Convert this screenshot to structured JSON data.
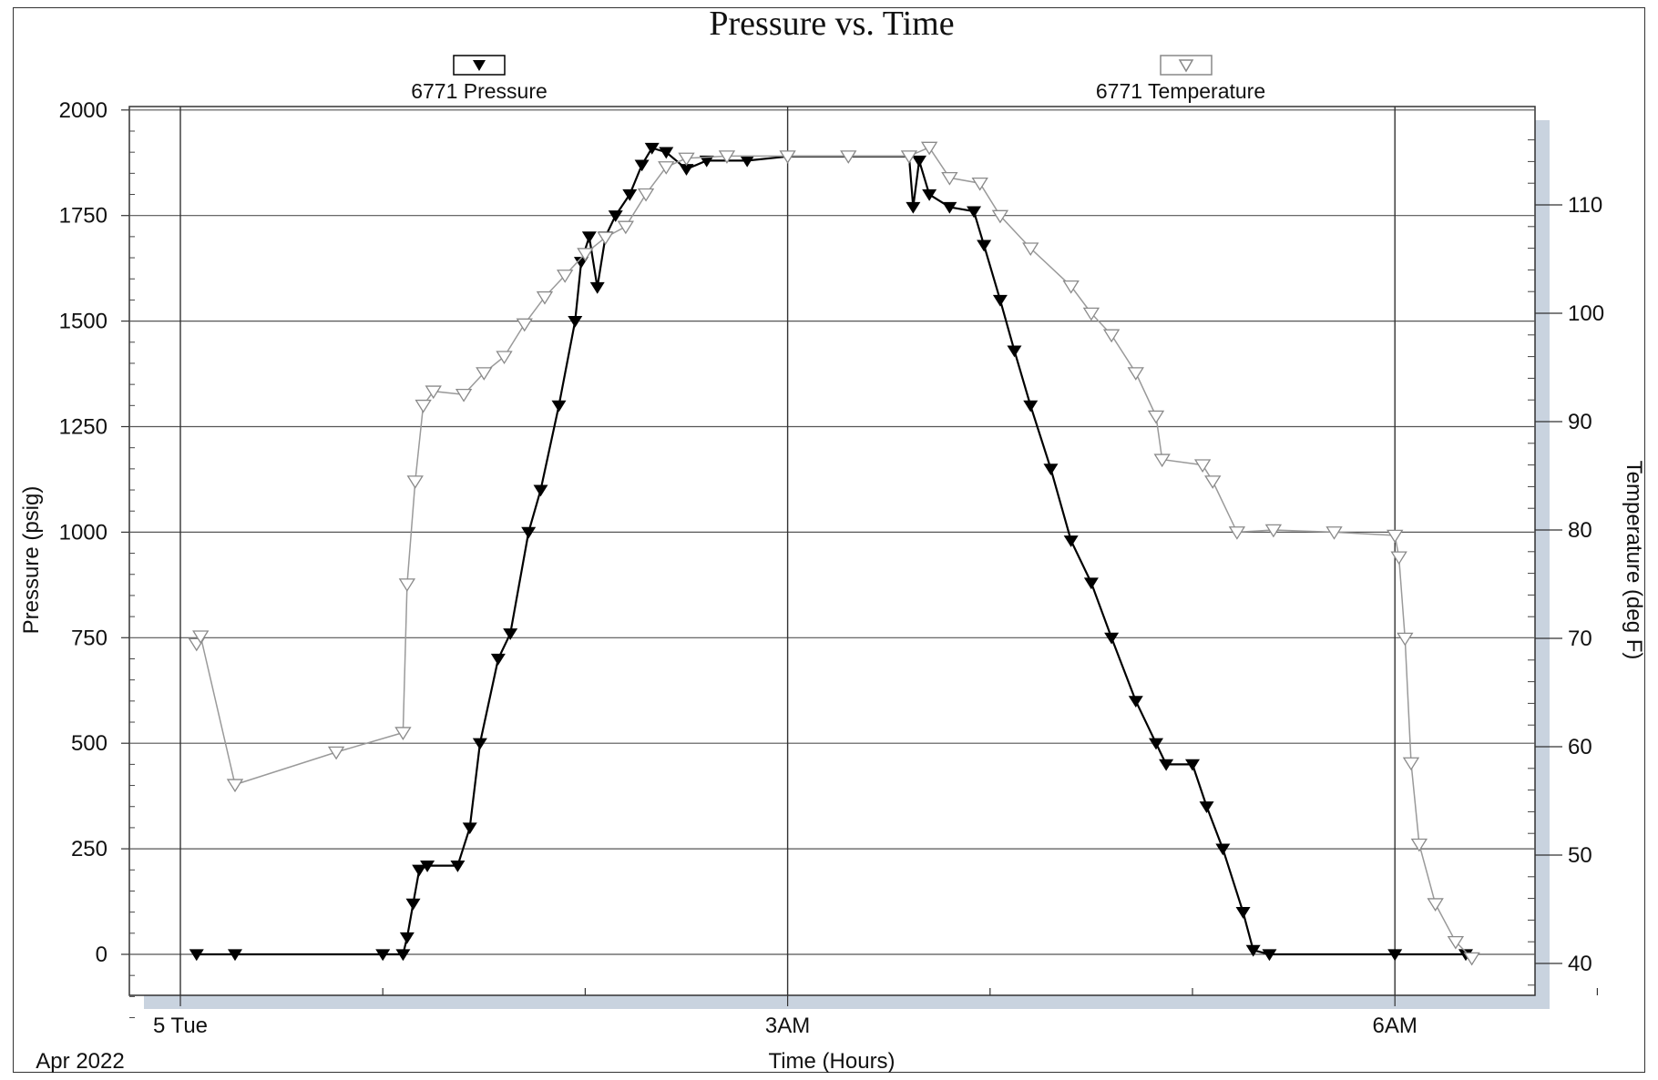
{
  "chart_data": {
    "type": "line",
    "title": "Pressure vs. Time",
    "xlabel": "Time (Hours)",
    "ylabel_left": "Pressure (psig)",
    "ylabel_right": "Temperature (deg F)",
    "x_unit": "hours since Apr 5 2022 00:00",
    "x_range": [
      -0.1,
      7.2
    ],
    "x_ticks": [
      {
        "x": 0,
        "label": "5 Tue"
      },
      {
        "x": 3,
        "label": "3AM"
      },
      {
        "x": 6,
        "label": "6AM"
      }
    ],
    "x_sub_label": "Apr 2022",
    "y_left_range": [
      -200,
      2000
    ],
    "y_left_ticks": [
      0,
      250,
      500,
      750,
      1000,
      1250,
      1500,
      1750,
      2000
    ],
    "y_right_range": [
      37,
      117
    ],
    "y_right_ticks": [
      40,
      50,
      60,
      70,
      80,
      90,
      100,
      110
    ],
    "grid": true,
    "legend_position": "top",
    "series": [
      {
        "name": "6771 Pressure",
        "axis": "left",
        "marker": "filled-down-triangle",
        "color": "#000000",
        "points": [
          [
            0.08,
            0
          ],
          [
            0.27,
            0
          ],
          [
            1.0,
            0
          ],
          [
            1.1,
            0
          ],
          [
            1.12,
            40
          ],
          [
            1.15,
            120
          ],
          [
            1.18,
            200
          ],
          [
            1.22,
            210
          ],
          [
            1.37,
            210
          ],
          [
            1.43,
            300
          ],
          [
            1.48,
            500
          ],
          [
            1.57,
            700
          ],
          [
            1.63,
            760
          ],
          [
            1.72,
            1000
          ],
          [
            1.78,
            1100
          ],
          [
            1.87,
            1300
          ],
          [
            1.95,
            1500
          ],
          [
            1.98,
            1640
          ],
          [
            2.02,
            1700
          ],
          [
            2.06,
            1580
          ],
          [
            2.1,
            1700
          ],
          [
            2.15,
            1750
          ],
          [
            2.22,
            1800
          ],
          [
            2.28,
            1870
          ],
          [
            2.33,
            1910
          ],
          [
            2.4,
            1900
          ],
          [
            2.5,
            1860
          ],
          [
            2.6,
            1880
          ],
          [
            2.8,
            1880
          ],
          [
            3.0,
            1890
          ],
          [
            3.3,
            1890
          ],
          [
            3.6,
            1890
          ],
          [
            3.62,
            1770
          ],
          [
            3.65,
            1880
          ],
          [
            3.7,
            1800
          ],
          [
            3.8,
            1770
          ],
          [
            3.92,
            1760
          ],
          [
            3.97,
            1680
          ],
          [
            4.05,
            1550
          ],
          [
            4.12,
            1430
          ],
          [
            4.2,
            1300
          ],
          [
            4.3,
            1150
          ],
          [
            4.4,
            980
          ],
          [
            4.5,
            880
          ],
          [
            4.6,
            750
          ],
          [
            4.72,
            600
          ],
          [
            4.82,
            500
          ],
          [
            4.87,
            450
          ],
          [
            5.0,
            450
          ],
          [
            5.07,
            350
          ],
          [
            5.15,
            250
          ],
          [
            5.25,
            100
          ],
          [
            5.3,
            10
          ],
          [
            5.38,
            0
          ],
          [
            6.0,
            0
          ],
          [
            6.35,
            0
          ]
        ]
      },
      {
        "name": "6771 Temperature",
        "axis": "right",
        "marker": "hollow-down-triangle",
        "color": "#8a8a8a",
        "points": [
          [
            0.08,
            69.5
          ],
          [
            0.1,
            70.2
          ],
          [
            0.27,
            56.5
          ],
          [
            0.77,
            59.5
          ],
          [
            1.1,
            61.3
          ],
          [
            1.12,
            75.0
          ],
          [
            1.16,
            84.5
          ],
          [
            1.2,
            91.5
          ],
          [
            1.25,
            92.8
          ],
          [
            1.4,
            92.5
          ],
          [
            1.5,
            94.5
          ],
          [
            1.6,
            96.0
          ],
          [
            1.7,
            99.0
          ],
          [
            1.8,
            101.5
          ],
          [
            1.9,
            103.5
          ],
          [
            2.0,
            105.5
          ],
          [
            2.1,
            107.0
          ],
          [
            2.2,
            108.0
          ],
          [
            2.3,
            111.0
          ],
          [
            2.4,
            113.5
          ],
          [
            2.5,
            114.3
          ],
          [
            2.7,
            114.5
          ],
          [
            3.0,
            114.5
          ],
          [
            3.3,
            114.5
          ],
          [
            3.6,
            114.5
          ],
          [
            3.7,
            115.3
          ],
          [
            3.8,
            112.5
          ],
          [
            3.95,
            112.0
          ],
          [
            4.05,
            109.0
          ],
          [
            4.2,
            106.0
          ],
          [
            4.4,
            102.5
          ],
          [
            4.5,
            100.0
          ],
          [
            4.6,
            98.0
          ],
          [
            4.72,
            94.5
          ],
          [
            4.82,
            90.5
          ],
          [
            4.85,
            86.5
          ],
          [
            5.05,
            86.0
          ],
          [
            5.1,
            84.5
          ],
          [
            5.22,
            79.8
          ],
          [
            5.4,
            80.0
          ],
          [
            5.7,
            79.8
          ],
          [
            6.0,
            79.5
          ],
          [
            6.02,
            77.5
          ],
          [
            6.05,
            70.0
          ],
          [
            6.08,
            58.5
          ],
          [
            6.12,
            51.0
          ],
          [
            6.2,
            45.5
          ],
          [
            6.3,
            42.0
          ],
          [
            6.38,
            40.5
          ]
        ]
      }
    ]
  }
}
